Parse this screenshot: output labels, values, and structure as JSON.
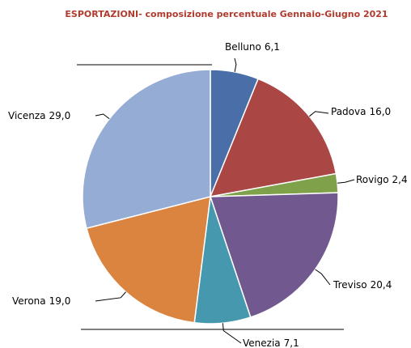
{
  "chart_data": {
    "type": "pie",
    "title": "ESPORTAZIONI- composizione percentuale Gennaio-Giugno 2021",
    "categories": [
      "Belluno",
      "Padova",
      "Rovigo",
      "Treviso",
      "Venezia",
      "Verona",
      "Vicenza"
    ],
    "values": [
      6.1,
      16.0,
      2.4,
      20.4,
      7.1,
      19.0,
      29.0
    ],
    "value_labels": [
      "6,1",
      "16,0",
      "2,4",
      "20,4",
      "7,1",
      "19,0",
      "29,0"
    ],
    "colors": [
      "#4a6fa8",
      "#aa4745",
      "#7ea14a",
      "#71588f",
      "#4698ae",
      "#db8440",
      "#95acd5"
    ]
  }
}
